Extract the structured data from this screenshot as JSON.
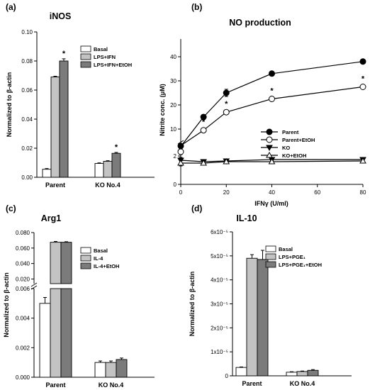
{
  "colors": {
    "basal": "#ffffff",
    "mid": "#c3c3c3",
    "dark": "#7b7b7b",
    "stroke": "#000000"
  },
  "chart_data": [
    {
      "panel": "(a)",
      "title": "iNOS",
      "type": "bar",
      "ylabel": "Normalized to β-actin",
      "xlabel": "",
      "categories": [
        "Parent",
        "KO No.4"
      ],
      "ylim": [
        0,
        0.1
      ],
      "yticks": [
        "0.00",
        "0.02",
        "0.04",
        "0.06",
        "0.08",
        "0.10"
      ],
      "series": [
        {
          "name": "Basal",
          "values": [
            0.0055,
            0.0095
          ],
          "errors": [
            0.0005,
            0.0004
          ]
        },
        {
          "name": "LPS+IFN",
          "values": [
            0.069,
            0.011
          ],
          "errors": [
            0.0005,
            0.0004
          ]
        },
        {
          "name": "LPS+IFN+EtOH",
          "values": [
            0.08,
            0.0165
          ],
          "errors": [
            0.0015,
            0.0006
          ]
        }
      ],
      "annotations": [
        {
          "text": "*",
          "category": "Parent",
          "series": "LPS+IFN+EtOH"
        },
        {
          "text": "*",
          "category": "KO No.4",
          "series": "LPS+IFN+EtOH"
        }
      ],
      "legend": "top-right"
    },
    {
      "panel": "(b)",
      "title": "NO production",
      "type": "line",
      "ylabel": "Nitrite conc. (μM)",
      "xlabel": "IFNγ (U/ml)",
      "x": [
        0,
        10,
        20,
        40,
        80
      ],
      "xticks": [
        "0",
        "20",
        "40",
        "60",
        "80"
      ],
      "yticks_lower": [
        "0",
        "2"
      ],
      "yticks_upper": [
        "10",
        "20",
        "30",
        "40"
      ],
      "axis_break": [
        2.6,
        8
      ],
      "series": [
        {
          "name": "Parent",
          "marker": "filled-circle",
          "values": [
            3.0,
            15,
            25,
            33,
            38
          ],
          "errors": [
            0.2,
            1,
            1.5,
            0.5,
            0.5
          ]
        },
        {
          "name": "Parent+EtOH",
          "marker": "open-circle",
          "values": [
            2.3,
            9.5,
            17,
            22.5,
            27.5
          ],
          "errors": [
            0.2,
            0.8,
            0.5,
            0.5,
            0.5
          ]
        },
        {
          "name": "KO",
          "marker": "filled-triangle-down",
          "values": [
            1.7,
            1.6,
            1.65,
            1.75,
            1.75
          ],
          "errors": [
            0.2,
            0.1,
            0.1,
            0.1,
            0.1
          ]
        },
        {
          "name": "KO+EtOH",
          "marker": "open-triangle-up",
          "values": [
            1.5,
            1.5,
            1.6,
            1.6,
            1.65
          ],
          "errors": [
            0.2,
            0.1,
            0.1,
            0.1,
            0.1
          ]
        }
      ],
      "annotations": [
        {
          "text": "*",
          "x": 10
        },
        {
          "text": "*",
          "x": 20
        },
        {
          "text": "*",
          "x": 40
        },
        {
          "text": "*",
          "x": 80
        }
      ],
      "legend": "bottom-right"
    },
    {
      "panel": "(c)",
      "title": "Arg1",
      "type": "bar",
      "ylabel": "Normalized to β-actin",
      "xlabel": "",
      "categories": [
        "Parent",
        "KO No.4"
      ],
      "yticks_lower": [
        "0.000",
        "0.002",
        "0.004",
        "0.006"
      ],
      "yticks_upper": [
        "0.020",
        "0.040",
        "0.060",
        "0.080"
      ],
      "axis_break": [
        0.007,
        0.013
      ],
      "series": [
        {
          "name": "Basal",
          "values": [
            0.005,
            0.001
          ],
          "errors": [
            0.0004,
            0.0001
          ]
        },
        {
          "name": "IL-4",
          "values": [
            0.0675,
            0.001
          ],
          "errors": [
            0.001,
            0.0001
          ]
        },
        {
          "name": "IL-4+EtOH",
          "values": [
            0.0675,
            0.0012
          ],
          "errors": [
            0.0007,
            0.0001
          ]
        }
      ],
      "legend": "top-right"
    },
    {
      "panel": "(d)",
      "title": "IL-10",
      "type": "bar",
      "ylabel": "Normalized to β-actin",
      "xlabel": "",
      "categories": [
        "Parent",
        "KO No.4"
      ],
      "ylim": [
        0,
        6e-05
      ],
      "yticks": [
        "0",
        "1x10⁻⁵",
        "2x10⁻⁵",
        "3x10⁻⁵",
        "4x10⁻⁵",
        "5x10⁻⁵",
        "6x10⁻⁵"
      ],
      "series": [
        {
          "name": "Basal",
          "values": [
            3.5e-06,
            1.5e-06
          ],
          "errors": [
            2e-07,
            2e-07
          ]
        },
        {
          "name": "LPS+PGE₁",
          "values": [
            4.9e-05,
            1.8e-06
          ],
          "errors": [
            1.5e-06,
            2e-07
          ]
        },
        {
          "name": "LPS+PGE₁+EtOH",
          "values": [
            4.85e-05,
            2.3e-06
          ],
          "errors": [
            3.8e-06,
            3e-07
          ]
        }
      ],
      "legend": "top-right"
    }
  ]
}
